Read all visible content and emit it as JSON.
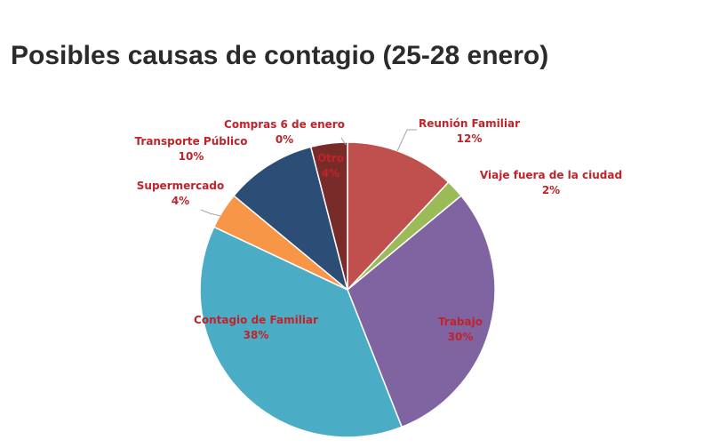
{
  "chart_data": {
    "type": "pie",
    "title": "Posibles causas de contagio (25-28 enero)",
    "label_color": "#c0232a",
    "slices": [
      {
        "name": "Reunión Familiar",
        "value": 12,
        "display": "12%",
        "color": "#c0504d"
      },
      {
        "name": "Viaje fuera de la ciudad",
        "value": 2,
        "display": "2%",
        "color": "#9bbb59"
      },
      {
        "name": "Trabajo",
        "value": 30,
        "display": "30%",
        "color": "#8064a2"
      },
      {
        "name": "Contagio de Familiar",
        "value": 38,
        "display": "38%",
        "color": "#4bacc6"
      },
      {
        "name": "Supermercado",
        "value": 4,
        "display": "4%",
        "color": "#f79646"
      },
      {
        "name": "Transporte Público",
        "value": 10,
        "display": "10%",
        "color": "#2c4d75"
      },
      {
        "name": "Otro",
        "value": 4,
        "display": "4%",
        "color": "#772c2a"
      },
      {
        "name": "Compras 6 de enero",
        "value": 0,
        "display": "0%",
        "color": "#c0504d"
      }
    ]
  }
}
